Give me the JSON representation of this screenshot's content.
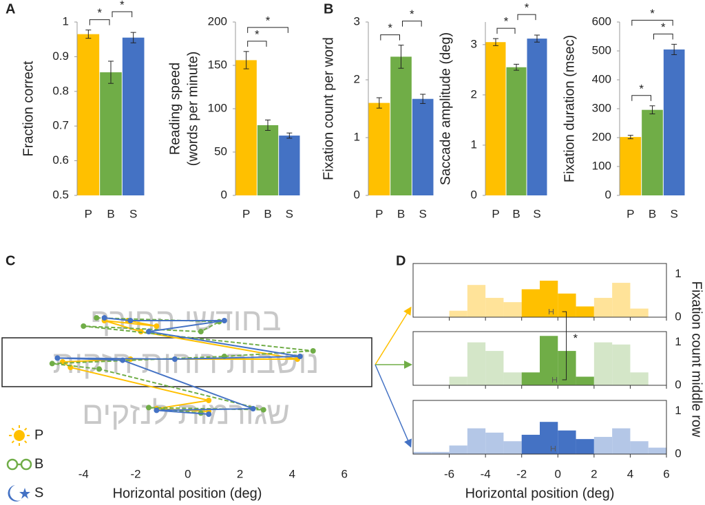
{
  "chart_data": [
    {
      "type": "bar",
      "panel": "A",
      "ylabel": "Fraction correct",
      "categories": [
        "P",
        "B",
        "S"
      ],
      "values": [
        0.965,
        0.855,
        0.955
      ],
      "errors": [
        0.012,
        0.032,
        0.015
      ],
      "colors": [
        "#ffc000",
        "#70ad47",
        "#4472c4"
      ],
      "ylim": [
        0.5,
        1
      ],
      "yticks": [
        0.5,
        0.6,
        0.7,
        0.8,
        0.9,
        1
      ],
      "brackets": [
        {
          "categories": [
            "P",
            "B"
          ],
          "label": "*"
        },
        {
          "categories": [
            "B",
            "S"
          ],
          "label": "*"
        }
      ]
    },
    {
      "type": "bar",
      "ylabel": [
        "Reading speed",
        "(words per minute)"
      ],
      "categories": [
        "P",
        "B",
        "S"
      ],
      "values": [
        156,
        81,
        69
      ],
      "errors": [
        10,
        6,
        3
      ],
      "colors": [
        "#ffc000",
        "#70ad47",
        "#4472c4"
      ],
      "ylim": [
        0,
        200
      ],
      "yticks": [
        0,
        50,
        100,
        150,
        200
      ],
      "brackets": [
        {
          "categories": [
            "P",
            "B"
          ],
          "label": "*"
        },
        {
          "categories": [
            "P",
            "S"
          ],
          "label": "*"
        }
      ]
    },
    {
      "type": "bar",
      "panel": "B",
      "ylabel": "Fixation count per word",
      "categories": [
        "P",
        "B",
        "S"
      ],
      "values": [
        1.6,
        2.4,
        1.67
      ],
      "errors": [
        0.09,
        0.2,
        0.08
      ],
      "colors": [
        "#ffc000",
        "#70ad47",
        "#4472c4"
      ],
      "ylim": [
        0,
        3
      ],
      "yticks": [
        0,
        1,
        2,
        3
      ],
      "brackets": [
        {
          "categories": [
            "P",
            "B"
          ],
          "label": "*"
        },
        {
          "categories": [
            "B",
            "S"
          ],
          "label": "*"
        }
      ]
    },
    {
      "type": "bar",
      "ylabel": "Saccade amplitude  (deg)",
      "categories": [
        "P",
        "B",
        "S"
      ],
      "values": [
        3.05,
        2.55,
        3.12
      ],
      "errors": [
        0.07,
        0.06,
        0.07
      ],
      "colors": [
        "#ffc000",
        "#70ad47",
        "#4472c4"
      ],
      "ylim": [
        0,
        3.45
      ],
      "yticks": [
        0,
        1,
        2,
        3
      ],
      "brackets": [
        {
          "categories": [
            "P",
            "B"
          ],
          "label": "*"
        },
        {
          "categories": [
            "B",
            "S"
          ],
          "label": "*"
        }
      ]
    },
    {
      "type": "bar",
      "ylabel": "Fixation duration (msec)",
      "categories": [
        "P",
        "B",
        "S"
      ],
      "values": [
        202,
        296,
        505
      ],
      "errors": [
        6,
        14,
        18
      ],
      "colors": [
        "#ffc000",
        "#70ad47",
        "#4472c4"
      ],
      "ylim": [
        0,
        600
      ],
      "yticks": [
        0,
        100,
        200,
        300,
        400,
        500,
        600
      ],
      "brackets": [
        {
          "categories": [
            "P",
            "B"
          ],
          "label": "*"
        },
        {
          "categories": [
            "B",
            "S"
          ],
          "label": "*"
        },
        {
          "categories": [
            "P",
            "S"
          ],
          "label": "*"
        }
      ]
    },
    {
      "type": "line",
      "panel": "C",
      "background_text": [
        "בחודשי החורף",
        "נושבות רוחות חזקות",
        "שגורמות לנזקים"
      ],
      "xlabel": "Horizontal position (deg)",
      "xlim": [
        -7.2,
        7.05
      ],
      "ylim": [
        0,
        3
      ],
      "xticks": [
        -4,
        -2,
        0,
        2,
        4,
        6
      ],
      "series": [
        {
          "name": "P",
          "color": "#ffc000",
          "x": [
            -2.3,
            -1.2,
            -3.2,
            -1.8,
            4.2,
            -2.2,
            -4.8,
            -4.5,
            0.8,
            -1.2,
            0.8
          ],
          "y": [
            2.3,
            2.2,
            2.3,
            2.1,
            1.6,
            1.6,
            1.55,
            1.45,
            0.85,
            0.7,
            0.65
          ]
        },
        {
          "name": "B",
          "color": "#70ad47",
          "x": [
            -3.5,
            1.2,
            0.5,
            -4,
            4.8,
            1.4,
            -5.2,
            -3.4,
            2.9,
            -1.5,
            0.5
          ],
          "y": [
            2.35,
            2.28,
            2.1,
            2.2,
            1.75,
            1.65,
            1.52,
            1.42,
            0.68,
            0.72,
            0.62
          ]
        },
        {
          "name": "S",
          "color": "#4472c4",
          "x": [
            -3.2,
            -2.2,
            1.4,
            -1.5,
            4.3,
            -0.5,
            -5,
            -2.5,
            2.5,
            -1.2,
            0.8
          ],
          "y": [
            2.35,
            2.3,
            2.3,
            2.1,
            1.65,
            1.6,
            1.62,
            1.58,
            0.7,
            0.67,
            0.6
          ]
        }
      ]
    },
    {
      "type": "histogram",
      "panel": "D",
      "xlabel": "Horizontal position (deg)",
      "ylabel": "Fixation count middle row",
      "bins": [
        -8,
        -7,
        -6,
        -5,
        -4,
        -3,
        -2,
        -1,
        0,
        1,
        2,
        3,
        4,
        5,
        6
      ],
      "xlim": [
        -8,
        6
      ],
      "ylim": [
        0,
        1.25
      ],
      "xticks": [
        -6,
        -4,
        -2,
        0,
        2,
        4,
        6
      ],
      "yticks": [
        0,
        1
      ],
      "annotation": "*",
      "series": [
        {
          "values": [
            0,
            0,
            0.15,
            0.75,
            0.45,
            0.35,
            0.65,
            0.85,
            0.55,
            0.25,
            0.45,
            0.8,
            0.2,
            0
          ],
          "mean": -0.37,
          "colors": [
            "#ffe399",
            "#ffe399",
            "#ffe399",
            "#ffe399",
            "#ffe399",
            "#ffe399",
            "#ffc000",
            "#ffc000",
            "#ffc000",
            "#ffc000",
            "#ffe399",
            "#ffe399",
            "#ffe399",
            "#ffe399"
          ]
        },
        {
          "values": [
            0,
            0,
            0.2,
            1.0,
            0.8,
            0.3,
            0.3,
            1.15,
            0.8,
            0.2,
            1.0,
            0.95,
            0.3,
            0
          ],
          "mean": -0.18,
          "colors": [
            "#d4e6c8",
            "#d4e6c8",
            "#d4e6c8",
            "#d4e6c8",
            "#d4e6c8",
            "#d4e6c8",
            "#70ad47",
            "#70ad47",
            "#70ad47",
            "#70ad47",
            "#d4e6c8",
            "#d4e6c8",
            "#d4e6c8",
            "#d4e6c8"
          ]
        },
        {
          "values": [
            0.05,
            0.05,
            0.2,
            0.6,
            0.5,
            0.3,
            0.45,
            0.75,
            0.55,
            0.35,
            0.4,
            0.6,
            0.3,
            0.15
          ],
          "mean": -0.26,
          "colors": [
            "#b4c7e7",
            "#b4c7e7",
            "#b4c7e7",
            "#b4c7e7",
            "#b4c7e7",
            "#b4c7e7",
            "#4472c4",
            "#4472c4",
            "#4472c4",
            "#4472c4",
            "#b4c7e7",
            "#b4c7e7",
            "#b4c7e7",
            "#b4c7e7"
          ]
        }
      ]
    }
  ]
}
